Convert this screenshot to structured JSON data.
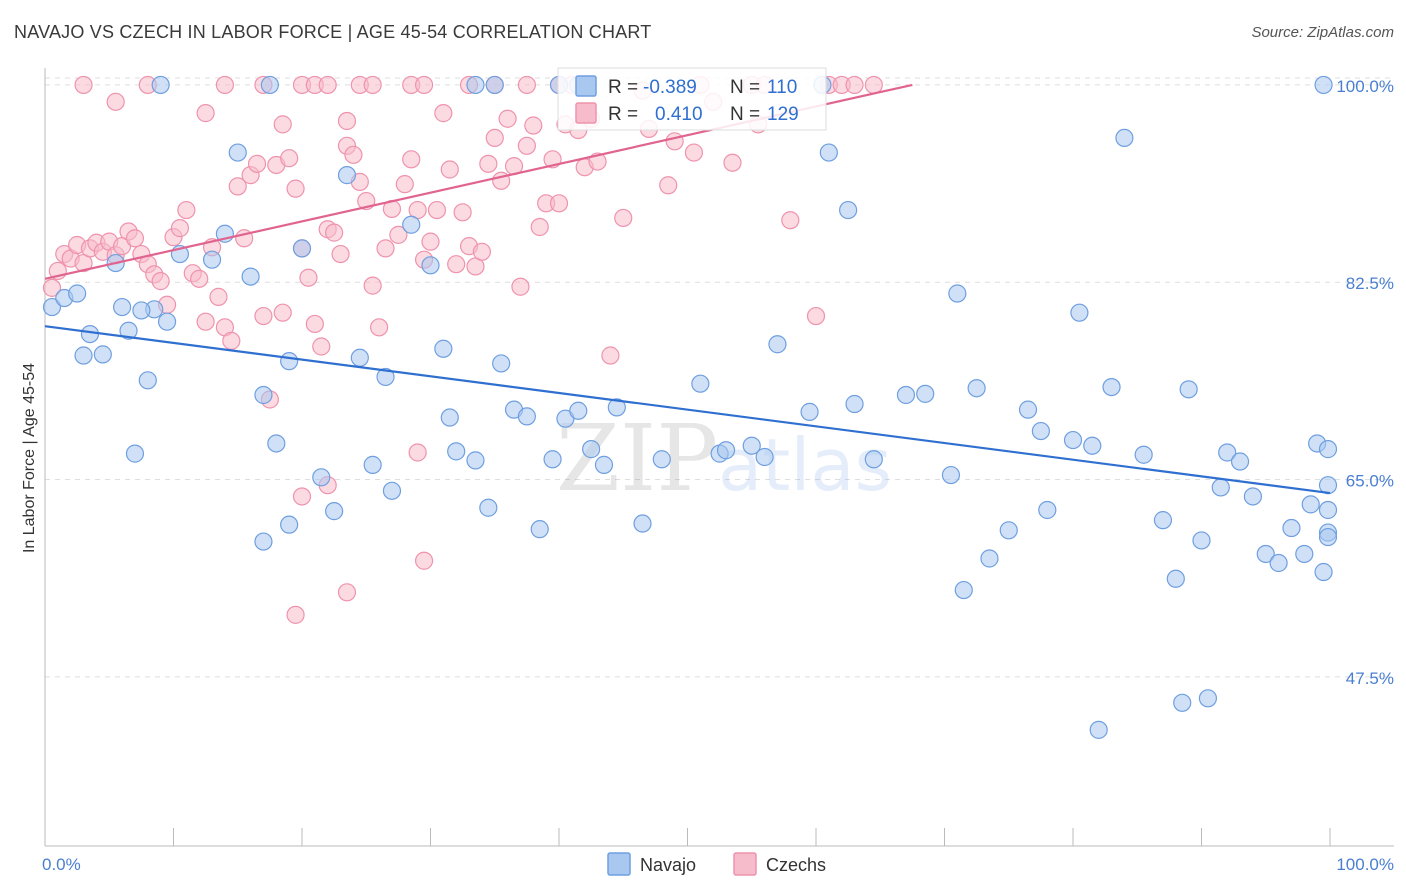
{
  "title": "NAVAJO VS CZECH IN LABOR FORCE | AGE 45-54 CORRELATION CHART",
  "source": "Source: ZipAtlas.com",
  "watermark": {
    "zip": "ZIP",
    "atlas": "atlas"
  },
  "colors": {
    "navajo_fill": "#a9c8f0",
    "navajo_stroke": "#6f9fe0",
    "navajo_line": "#2f6fd0",
    "czech_fill": "#f7bccb",
    "czech_stroke": "#ef93ad",
    "czech_line": "#e0648f",
    "tick_text": "#4a7fd0",
    "grid": "#dddddd"
  },
  "legend": {
    "rows": [
      {
        "r_label": "R =",
        "r_value": "-0.389",
        "n_label": "N =",
        "n_value": "110"
      },
      {
        "r_label": "R =",
        "r_value": "0.410",
        "n_label": "N =",
        "n_value": "129"
      }
    ]
  },
  "bottom_legend": {
    "navajo": "Navajo",
    "czechs": "Czechs"
  },
  "chart_data": {
    "type": "scatter",
    "title": "NAVAJO VS CZECH IN LABOR FORCE | AGE 45-54 CORRELATION CHART",
    "xlabel": "",
    "ylabel": "In Labor Force | Age 45-54",
    "xlim": [
      0,
      100
    ],
    "ylim": [
      32.5,
      101.5
    ],
    "x_tick_labels": [
      "0.0%",
      "100.0%"
    ],
    "y_ticks": [
      47.5,
      65.0,
      82.5,
      100.0
    ],
    "y_tick_labels": [
      "47.5%",
      "65.0%",
      "82.5%",
      "100.0%"
    ],
    "grid": true,
    "series": [
      {
        "name": "Navajo",
        "r": -0.389,
        "n": 110,
        "trend": {
          "x": [
            0,
            100
          ],
          "y": [
            78.6,
            63.8
          ]
        },
        "points": [
          [
            0.5,
            80.3
          ],
          [
            1.5,
            81.1
          ],
          [
            2.5,
            81.5
          ],
          [
            3.5,
            77.9
          ],
          [
            4.5,
            76.1
          ],
          [
            3.0,
            76.0
          ],
          [
            5.5,
            84.2
          ],
          [
            6.5,
            78.2
          ],
          [
            8.5,
            80.1
          ],
          [
            6.0,
            80.3
          ],
          [
            7.5,
            80.0
          ],
          [
            7.0,
            67.3
          ],
          [
            9.5,
            79.0
          ],
          [
            10.5,
            85.0
          ],
          [
            8.0,
            73.8
          ],
          [
            13.0,
            84.5
          ],
          [
            14.0,
            86.8
          ],
          [
            15.0,
            94.0
          ],
          [
            16.0,
            83.0
          ],
          [
            17.0,
            72.5
          ],
          [
            18.0,
            68.2
          ],
          [
            20.0,
            85.5
          ],
          [
            21.5,
            65.2
          ],
          [
            19.0,
            75.5
          ],
          [
            22.5,
            62.2
          ],
          [
            23.5,
            92.0
          ],
          [
            24.5,
            75.8
          ],
          [
            25.5,
            66.3
          ],
          [
            26.5,
            74.1
          ],
          [
            27.0,
            64.0
          ],
          [
            28.5,
            87.6
          ],
          [
            30.0,
            84.0
          ],
          [
            31.0,
            76.6
          ],
          [
            31.5,
            70.5
          ],
          [
            32.0,
            67.5
          ],
          [
            33.5,
            66.7
          ],
          [
            34.5,
            62.5
          ],
          [
            35.5,
            75.3
          ],
          [
            36.5,
            71.2
          ],
          [
            37.5,
            70.6
          ],
          [
            38.5,
            60.6
          ],
          [
            39.5,
            66.8
          ],
          [
            40.5,
            70.4
          ],
          [
            41.5,
            71.1
          ],
          [
            42.5,
            67.7
          ],
          [
            43.5,
            66.3
          ],
          [
            44.5,
            71.4
          ],
          [
            46.5,
            61.1
          ],
          [
            48.0,
            66.8
          ],
          [
            51.0,
            73.5
          ],
          [
            52.5,
            67.3
          ],
          [
            53.0,
            67.6
          ],
          [
            55.0,
            68.0
          ],
          [
            56.0,
            67.0
          ],
          [
            57.0,
            77.0
          ],
          [
            59.5,
            71.0
          ],
          [
            61.0,
            94.0
          ],
          [
            62.5,
            88.9
          ],
          [
            63.0,
            71.7
          ],
          [
            64.5,
            66.8
          ],
          [
            67.0,
            72.5
          ],
          [
            68.5,
            72.6
          ],
          [
            70.5,
            65.4
          ],
          [
            71.0,
            81.5
          ],
          [
            71.5,
            55.2
          ],
          [
            72.5,
            73.1
          ],
          [
            73.5,
            58.0
          ],
          [
            75.0,
            60.5
          ],
          [
            76.5,
            71.2
          ],
          [
            77.5,
            69.3
          ],
          [
            78.0,
            62.3
          ],
          [
            80.0,
            68.5
          ],
          [
            80.5,
            79.8
          ],
          [
            81.5,
            68.0
          ],
          [
            82.0,
            42.8
          ],
          [
            83.0,
            73.2
          ],
          [
            84.0,
            95.3
          ],
          [
            85.5,
            67.2
          ],
          [
            87.0,
            61.4
          ],
          [
            88.0,
            56.2
          ],
          [
            88.5,
            45.2
          ],
          [
            89.0,
            73.0
          ],
          [
            90.0,
            59.6
          ],
          [
            90.5,
            45.6
          ],
          [
            91.5,
            64.3
          ],
          [
            92.0,
            67.4
          ],
          [
            93.0,
            66.6
          ],
          [
            94.0,
            63.5
          ],
          [
            95.0,
            58.4
          ],
          [
            96.0,
            57.6
          ],
          [
            97.0,
            60.7
          ],
          [
            98.0,
            58.4
          ],
          [
            98.5,
            62.8
          ],
          [
            99.0,
            68.2
          ],
          [
            100.0,
            60.3
          ],
          [
            99.5,
            56.8
          ],
          [
            100.5,
            64.5
          ],
          [
            101.0,
            59.9
          ],
          [
            101.5,
            62.3
          ],
          [
            102.0,
            67.7
          ],
          [
            17.0,
            59.5
          ],
          [
            19.0,
            61.0
          ],
          [
            9.0,
            100.0
          ],
          [
            17.5,
            100.0
          ],
          [
            33.5,
            100.0
          ],
          [
            35.0,
            100.0
          ],
          [
            40.0,
            100.0
          ],
          [
            41.5,
            100.0
          ],
          [
            60.5,
            100.0
          ],
          [
            99.5,
            100.0
          ]
        ]
      },
      {
        "name": "Czechs",
        "r": 0.41,
        "n": 129,
        "trend": {
          "x": [
            0,
            67.5
          ],
          "y": [
            82.8,
            100.0
          ]
        },
        "points": [
          [
            0.5,
            82.0
          ],
          [
            1.0,
            83.5
          ],
          [
            1.5,
            85.0
          ],
          [
            2.0,
            84.6
          ],
          [
            2.5,
            85.8
          ],
          [
            3.0,
            84.2
          ],
          [
            3.5,
            85.5
          ],
          [
            4.0,
            86.0
          ],
          [
            4.5,
            85.2
          ],
          [
            5.0,
            86.1
          ],
          [
            5.5,
            84.9
          ],
          [
            6.0,
            85.7
          ],
          [
            6.5,
            87.0
          ],
          [
            7.0,
            86.4
          ],
          [
            7.5,
            85.0
          ],
          [
            8.0,
            84.1
          ],
          [
            8.5,
            83.2
          ],
          [
            9.0,
            82.6
          ],
          [
            9.5,
            80.5
          ],
          [
            10.0,
            86.5
          ],
          [
            10.5,
            87.3
          ],
          [
            11.0,
            88.9
          ],
          [
            11.5,
            83.3
          ],
          [
            12.0,
            82.8
          ],
          [
            12.5,
            79.0
          ],
          [
            13.0,
            85.6
          ],
          [
            13.5,
            81.2
          ],
          [
            14.0,
            78.5
          ],
          [
            14.5,
            77.3
          ],
          [
            15.0,
            91.0
          ],
          [
            15.5,
            86.4
          ],
          [
            16.0,
            92.0
          ],
          [
            16.5,
            93.0
          ],
          [
            17.0,
            79.5
          ],
          [
            17.5,
            72.1
          ],
          [
            18.0,
            92.9
          ],
          [
            18.5,
            79.8
          ],
          [
            19.0,
            93.5
          ],
          [
            19.5,
            90.8
          ],
          [
            20.0,
            85.5
          ],
          [
            20.5,
            82.9
          ],
          [
            21.0,
            78.8
          ],
          [
            21.5,
            76.8
          ],
          [
            22.0,
            87.2
          ],
          [
            22.5,
            86.9
          ],
          [
            23.0,
            85.0
          ],
          [
            23.5,
            94.6
          ],
          [
            24.0,
            93.8
          ],
          [
            24.5,
            91.4
          ],
          [
            25.0,
            89.7
          ],
          [
            25.5,
            82.2
          ],
          [
            26.0,
            78.5
          ],
          [
            26.5,
            85.5
          ],
          [
            27.0,
            89.0
          ],
          [
            27.5,
            86.7
          ],
          [
            28.0,
            91.2
          ],
          [
            28.5,
            93.4
          ],
          [
            29.0,
            88.9
          ],
          [
            29.5,
            84.5
          ],
          [
            30.0,
            86.1
          ],
          [
            30.5,
            88.9
          ],
          [
            31.0,
            97.5
          ],
          [
            31.5,
            92.5
          ],
          [
            32.0,
            84.1
          ],
          [
            32.5,
            88.7
          ],
          [
            33.0,
            85.7
          ],
          [
            33.5,
            83.9
          ],
          [
            34.0,
            85.2
          ],
          [
            34.5,
            93.0
          ],
          [
            35.0,
            95.3
          ],
          [
            35.5,
            91.5
          ],
          [
            36.0,
            97.0
          ],
          [
            36.5,
            92.8
          ],
          [
            37.0,
            82.1
          ],
          [
            37.5,
            94.6
          ],
          [
            38.0,
            96.4
          ],
          [
            38.5,
            87.4
          ],
          [
            39.0,
            89.5
          ],
          [
            39.5,
            93.4
          ],
          [
            40.0,
            89.5
          ],
          [
            40.5,
            96.5
          ],
          [
            41.5,
            96.0
          ],
          [
            42.0,
            92.7
          ],
          [
            42.5,
            97.0
          ],
          [
            43.0,
            93.2
          ],
          [
            44.0,
            76.0
          ],
          [
            45.0,
            88.2
          ],
          [
            46.5,
            99.5
          ],
          [
            47.0,
            96.1
          ],
          [
            48.5,
            91.1
          ],
          [
            49.0,
            95.0
          ],
          [
            50.5,
            94.0
          ],
          [
            51.0,
            100.0
          ],
          [
            52.0,
            98.5
          ],
          [
            53.5,
            93.1
          ],
          [
            55.0,
            100.0
          ],
          [
            56.0,
            100.0
          ],
          [
            55.5,
            96.5
          ],
          [
            58.0,
            88.0
          ],
          [
            60.0,
            79.5
          ],
          [
            61.0,
            100.0
          ],
          [
            62.0,
            100.0
          ],
          [
            63.0,
            100.0
          ],
          [
            64.5,
            100.0
          ],
          [
            3.0,
            100.0
          ],
          [
            5.5,
            98.5
          ],
          [
            8.0,
            100.0
          ],
          [
            12.5,
            97.5
          ],
          [
            14.0,
            100.0
          ],
          [
            17.0,
            100.0
          ],
          [
            18.5,
            96.5
          ],
          [
            20.0,
            100.0
          ],
          [
            21.0,
            100.0
          ],
          [
            22.0,
            100.0
          ],
          [
            23.5,
            96.8
          ],
          [
            24.5,
            100.0
          ],
          [
            25.5,
            100.0
          ],
          [
            28.5,
            100.0
          ],
          [
            29.5,
            100.0
          ],
          [
            33.0,
            100.0
          ],
          [
            35.0,
            100.0
          ],
          [
            37.5,
            100.0
          ],
          [
            40.0,
            100.0
          ],
          [
            41.0,
            100.0
          ],
          [
            20.0,
            63.5
          ],
          [
            22.0,
            64.5
          ],
          [
            23.5,
            55.0
          ],
          [
            29.5,
            57.8
          ],
          [
            29.0,
            67.4
          ],
          [
            19.5,
            53.0
          ]
        ]
      }
    ]
  }
}
